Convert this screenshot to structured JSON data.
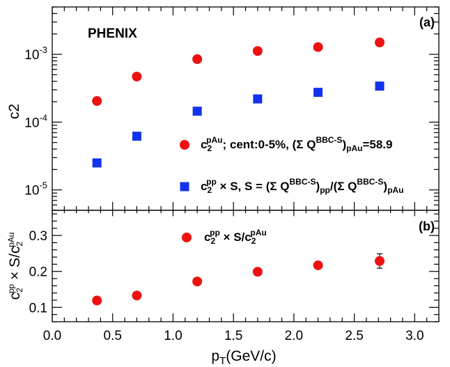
{
  "chart_data": [
    {
      "panel": "(a)",
      "type": "scatter",
      "experiment_label": "PHENIX",
      "y_scale": "log",
      "ylim": [
        5e-06,
        0.005
      ],
      "xlim": [
        0.0,
        3.2
      ],
      "ylabel": "c2",
      "y_ticks": [
        {
          "value": 1e-05,
          "base": "10",
          "exp": "-5"
        },
        {
          "value": 0.0001,
          "base": "10",
          "exp": "-4"
        },
        {
          "value": 0.001,
          "base": "10",
          "exp": "-3"
        }
      ],
      "legend_placement": "lower-right",
      "series": [
        {
          "label_parts": [
            "c",
            "2",
            "pAu",
            "; cent:0-5%, (Σ Q",
            "BBC-S",
            ")",
            "pAu",
            "=58.9"
          ],
          "marker": "circle",
          "color": "#ee1111",
          "x": [
            0.37,
            0.7,
            1.2,
            1.7,
            2.2,
            2.71
          ],
          "y": [
            0.000205,
            0.00047,
            0.00085,
            0.00112,
            0.00128,
            0.0015
          ]
        },
        {
          "label_parts": [
            "c",
            "2",
            "pp",
            " × S, S = (Σ Q",
            "BBC-S",
            ")",
            "pp",
            "/(Σ Q",
            "BBC-S",
            ")",
            "pAu"
          ],
          "marker": "square",
          "color": "#1133ee",
          "x": [
            0.37,
            0.7,
            1.2,
            1.7,
            2.2,
            2.71
          ],
          "y": [
            2.5e-05,
            6.2e-05,
            0.000145,
            0.00022,
            0.000275,
            0.00034
          ]
        }
      ]
    },
    {
      "panel": "(b)",
      "type": "scatter",
      "xlabel": "p_T(GeV/c)",
      "xlabel_main": "p",
      "xlabel_sub": "T",
      "xlabel_rest": "(GeV/c)",
      "xlim": [
        0.0,
        3.2
      ],
      "ylim": [
        0.06,
        0.37
      ],
      "x_ticks": [
        "0.0",
        "0.5",
        "1.0",
        "1.5",
        "2.0",
        "2.5",
        "3.0"
      ],
      "y_ticks": [
        "0.1",
        "0.2",
        "0.3"
      ],
      "ylabel_parts": [
        "c",
        "2",
        "pp",
        " × S/c",
        "2",
        "pAu"
      ],
      "legend_placement": "top-center",
      "series": [
        {
          "label_parts": [
            "c",
            "2",
            "pp",
            " × S/c",
            "2",
            "pAu"
          ],
          "marker": "circle",
          "color": "#ee1111",
          "x": [
            0.37,
            0.7,
            1.2,
            1.7,
            2.2,
            2.71
          ],
          "y": [
            0.119,
            0.133,
            0.172,
            0.199,
            0.217,
            0.229
          ],
          "yerr": [
            0.004,
            0.004,
            0.005,
            0.006,
            0.009,
            0.02
          ]
        }
      ]
    }
  ]
}
